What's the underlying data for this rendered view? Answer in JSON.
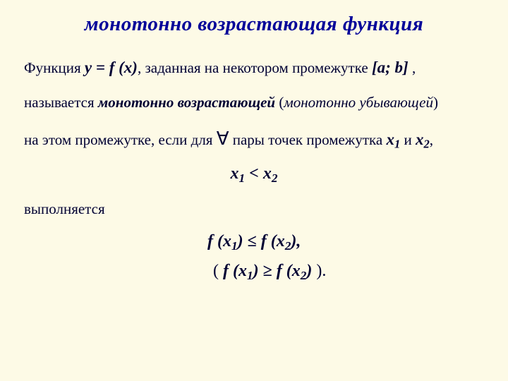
{
  "colors": {
    "background": "#fdfae6",
    "titleColor": "#000099",
    "textColor": "#000033"
  },
  "fonts": {
    "family": "Times New Roman",
    "titleSize": 29,
    "bodySize": 21,
    "formulaSize": 24
  },
  "title": "монотонно  возрастающая  функция",
  "line1": {
    "t1": "Функция ",
    "fn": "y = f (x)",
    "t2": ", заданная на некотором промежутке ",
    "interval": "[a; b]",
    "t3": "  ,"
  },
  "line2": {
    "t1": "называется ",
    "inc": "монотонно возрастающей",
    "t2": " (",
    "dec": "монотонно убывающей",
    "t3": ")"
  },
  "line3": {
    "t1": " на этом промежутке, если для ",
    "sym": "∀",
    "t2": " пары точек промежутка ",
    "x1": "x",
    "s1": "1",
    "and": " и ",
    "x2": "x",
    "s2": "2",
    "t3": ","
  },
  "cond": {
    "x1": "x",
    "s1": "1",
    "op": " < ",
    "x2": "x",
    "s2": "2"
  },
  "line4": "выполняется",
  "f1": {
    "a": "f (x",
    "s1": "1",
    "b": ")",
    "op": " ≤ ",
    "c": "f (x",
    "s2": "2",
    "d": "),"
  },
  "f2": {
    "open": "( ",
    "a": "f (x",
    "s1": "1",
    "b": ")",
    "op": " ≥ ",
    "c": "f (x",
    "s2": "2",
    "d": ")",
    "close": " )."
  }
}
